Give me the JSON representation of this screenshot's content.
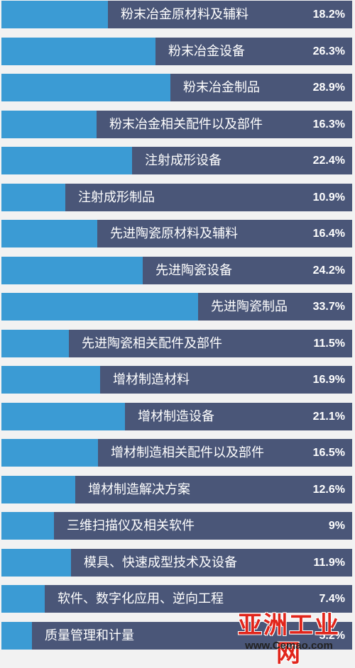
{
  "colors": {
    "bar_bg": "#4a5678",
    "bar_fill": "#3b9bd4",
    "watermark": "#e1251b"
  },
  "watermark": {
    "main": "亚洲工业网",
    "sub": "www.Cemao.com"
  },
  "chart_data": {
    "type": "bar",
    "orientation": "horizontal",
    "xlim": [
      0,
      60
    ],
    "categories": [
      "粉末冶金原材料及辅料",
      "粉末冶金设备",
      "粉末冶金制品",
      "粉末冶金相关配件以及部件",
      "注射成形设备",
      "注射成形制品",
      "先进陶瓷原材料及辅料",
      "先进陶瓷设备",
      "先进陶瓷制品",
      "先进陶瓷相关配件及部件",
      "增材制造材料",
      "增材制造设备",
      "增材制造相关配件以及部件",
      "增材制造解决方案",
      "三维扫描仪及相关软件",
      "模具、快速成型技术及设备",
      "软件、数字化应用、逆向工程",
      "质量管理和计量"
    ],
    "values": [
      18.2,
      26.3,
      28.9,
      16.3,
      22.4,
      10.9,
      16.4,
      24.2,
      33.7,
      11.5,
      16.9,
      21.1,
      16.5,
      12.6,
      9,
      11.9,
      7.4,
      5.2
    ],
    "value_labels": [
      "18.2%",
      "26.3%",
      "28.9%",
      "16.3%",
      "22.4%",
      "10.9%",
      "16.4%",
      "24.2%",
      "33.7%",
      "11.5%",
      "16.9%",
      "21.1%",
      "16.5%",
      "12.6%",
      "9%",
      "11.9%",
      "7.4%",
      "5.2%"
    ]
  }
}
